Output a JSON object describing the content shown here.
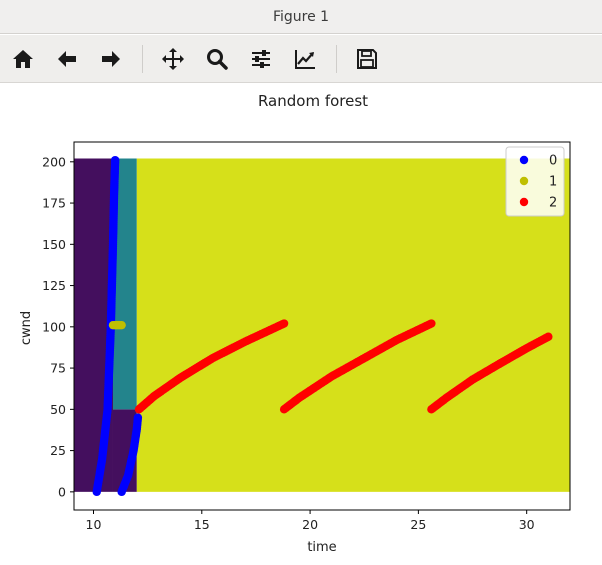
{
  "window": {
    "title": "Figure 1"
  },
  "toolbar": {
    "buttons": [
      {
        "name": "home-button",
        "icon": "home-icon"
      },
      {
        "name": "back-button",
        "icon": "arrow-left-icon"
      },
      {
        "name": "forward-button",
        "icon": "arrow-right-icon"
      },
      {
        "name": "pan-button",
        "icon": "move-icon"
      },
      {
        "name": "zoom-button",
        "icon": "search-icon"
      },
      {
        "name": "configure-subplots-button",
        "icon": "sliders-icon"
      },
      {
        "name": "edit-axis-button",
        "icon": "line-chart-icon"
      },
      {
        "name": "save-button",
        "icon": "floppy-disk-icon"
      }
    ]
  },
  "chart_data": {
    "type": "scatter",
    "title": "Random forest",
    "xlabel": "time",
    "ylabel": "cwnd",
    "xlim": [
      9.1,
      32.0
    ],
    "ylim": [
      -11.0,
      212.0
    ],
    "xticks": [
      "10",
      "15",
      "20",
      "25",
      "30"
    ],
    "yticks": [
      "0",
      "25",
      "50",
      "75",
      "100",
      "125",
      "150",
      "175",
      "200"
    ],
    "legend": {
      "position": "upper-right",
      "entries": [
        "0",
        "1",
        "2"
      ]
    },
    "colors": {
      "class0": "#0000ff",
      "class1": "#bfbf00",
      "class2": "#ff0000",
      "region0": "#440f5e",
      "region1": "#23848c",
      "region2": "#d6e01a"
    },
    "decision_regions": [
      {
        "class": "0",
        "x": [
          9.1,
          10.9
        ],
        "y": [
          0,
          202
        ]
      },
      {
        "class": "0",
        "x": [
          10.9,
          12.0
        ],
        "y": [
          0,
          50
        ]
      },
      {
        "class": "1",
        "x": [
          10.9,
          12.0
        ],
        "y": [
          50,
          202
        ]
      },
      {
        "class": "2",
        "x": [
          12.0,
          32.0
        ],
        "y": [
          0,
          202
        ]
      }
    ],
    "series": [
      {
        "name": "0",
        "segments": [
          {
            "x": [
              10.15,
              10.4,
              10.65,
              10.8,
              10.9,
              10.95,
              11.0
            ],
            "y": [
              0,
              20,
              50,
              100,
              150,
              180,
              201
            ]
          },
          {
            "x": [
              11.3,
              11.6,
              11.85,
              12.0,
              12.05
            ],
            "y": [
              0,
              10,
              25,
              38,
              45
            ]
          }
        ]
      },
      {
        "name": "1",
        "segments": [
          {
            "x": [
              10.9,
              11.3
            ],
            "y": [
              101,
              101
            ]
          }
        ]
      },
      {
        "name": "2",
        "segments": [
          {
            "x": [
              12.1,
              12.8,
              14.0,
              15.5,
              17.0,
              18.8
            ],
            "y": [
              50,
              58,
              69,
              81,
              91,
              102
            ]
          },
          {
            "x": [
              18.8,
              19.5,
              21.0,
              22.5,
              24.0,
              25.6
            ],
            "y": [
              50,
              57,
              70,
              81,
              92,
              102
            ]
          },
          {
            "x": [
              25.6,
              26.3,
              27.5,
              28.8,
              30.0,
              31.0
            ],
            "y": [
              50,
              57,
              68,
              78,
              87,
              94
            ]
          }
        ]
      }
    ]
  }
}
